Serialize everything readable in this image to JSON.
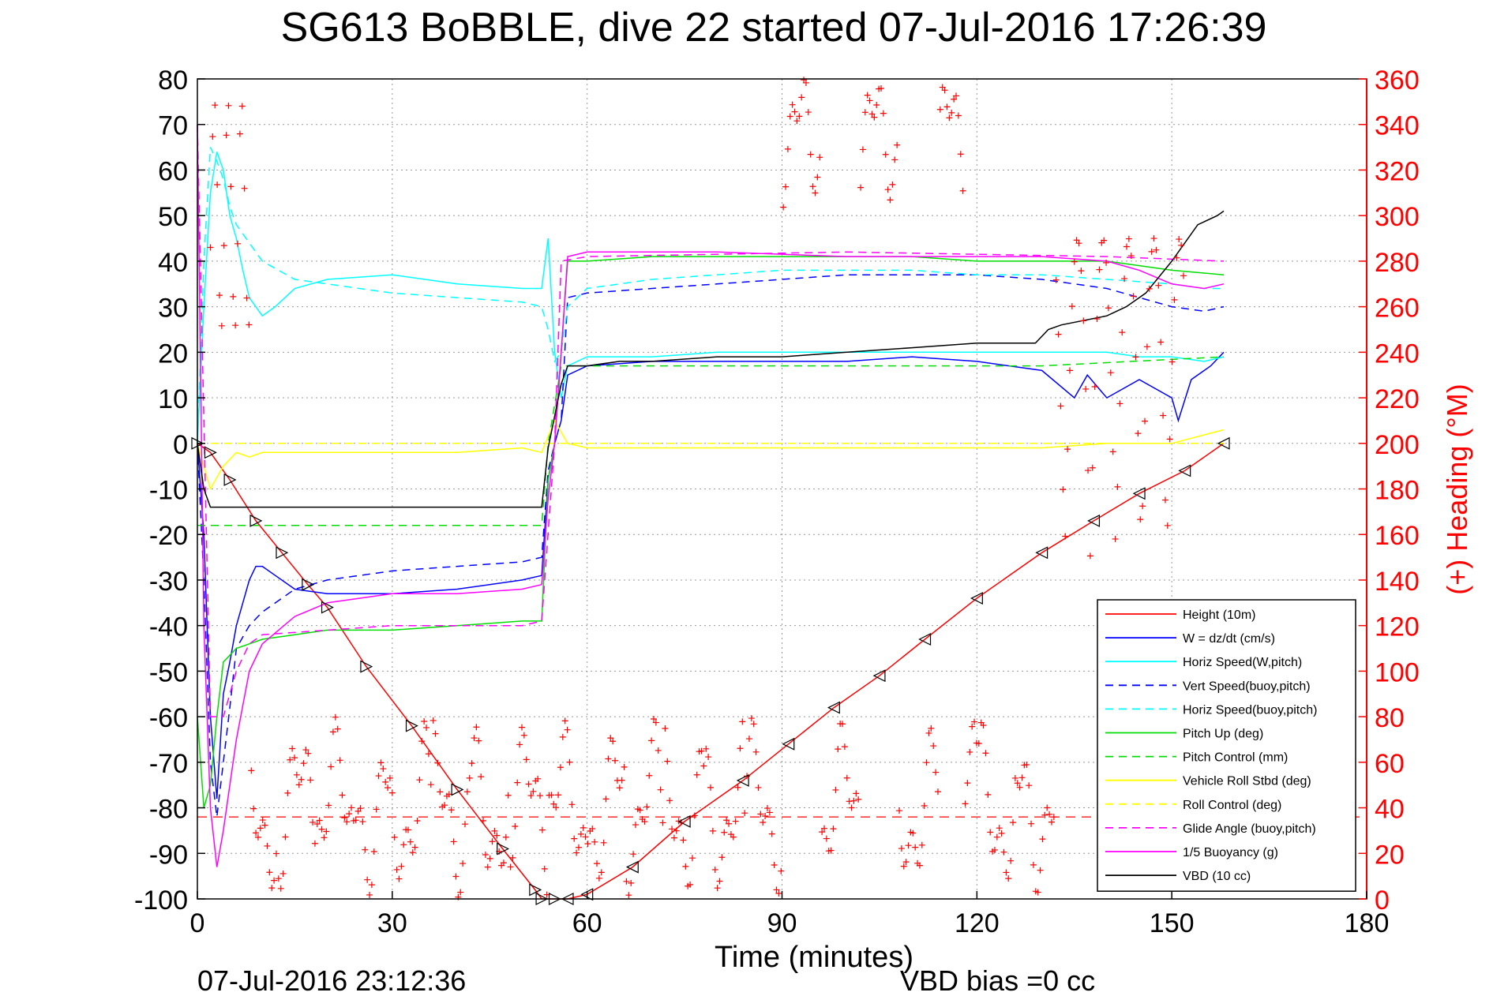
{
  "chart_data": {
    "type": "line",
    "title": "SG613 BoBBLE, dive 22 started 07-Jul-2016 17:26:39",
    "xlabel": "Time (minutes)",
    "ylabel_right": "(+) Heading (°M)",
    "footer_left": "07-Jul-2016 23:12:36",
    "footer_right": "VBD bias =0 cc",
    "xlim": [
      0,
      180
    ],
    "ylim": [
      -100,
      80
    ],
    "y2lim": [
      0,
      360
    ],
    "xticks": [
      "0",
      "30",
      "60",
      "90",
      "120",
      "150",
      "180"
    ],
    "yticks": [
      "80",
      "70",
      "60",
      "50",
      "40",
      "30",
      "20",
      "10",
      "0",
      "-10",
      "-20",
      "-30",
      "-40",
      "-50",
      "-60",
      "-70",
      "-80",
      "-90",
      "-100"
    ],
    "y2ticks": [
      "360",
      "340",
      "320",
      "300",
      "280",
      "260",
      "240",
      "220",
      "200",
      "180",
      "160",
      "140",
      "120",
      "100",
      "80",
      "60",
      "40",
      "20",
      "0"
    ],
    "grid": true,
    "legend_position": "bottom-right",
    "series": [
      {
        "name": "Height (10m)",
        "color": "#ff0000",
        "style": "solid",
        "x": [
          0,
          2,
          5,
          9,
          13,
          17,
          20,
          26,
          33,
          40,
          47,
          52,
          53,
          55,
          57,
          60,
          67,
          75,
          84,
          91,
          98,
          105,
          112,
          120,
          130,
          138,
          145,
          152,
          158
        ],
        "y": [
          0,
          -2,
          -8,
          -17,
          -24,
          -31,
          -36,
          -49,
          -62,
          -76,
          -89,
          -98,
          -100,
          -100,
          -100,
          -99,
          -93,
          -83,
          -74,
          -66,
          -58,
          -51,
          -43,
          -34,
          -24,
          -17,
          -11,
          -6,
          0
        ]
      },
      {
        "name": "W = dz/dt (cm/s)",
        "color": "#0000ff",
        "style": "solid",
        "x": [
          0,
          1,
          2,
          3,
          4,
          5,
          6,
          7,
          8,
          9,
          10,
          12,
          15,
          20,
          30,
          40,
          50,
          53,
          54,
          55,
          56,
          57,
          60,
          70,
          80,
          90,
          100,
          110,
          120,
          130,
          135,
          137,
          140,
          145,
          150,
          151,
          153,
          156,
          158
        ],
        "y": [
          0,
          -20,
          -60,
          -78,
          -55,
          -48,
          -40,
          -35,
          -30,
          -27,
          -27,
          -29,
          -32,
          -33,
          -33,
          -32,
          -30,
          -29,
          -8,
          0,
          5,
          15,
          17,
          18,
          18,
          18,
          18,
          19,
          18,
          16,
          10,
          15,
          10,
          14,
          10,
          5,
          14,
          17,
          20
        ]
      },
      {
        "name": "Horiz Speed(W,pitch)",
        "color": "#00ffff",
        "style": "solid",
        "x": [
          0,
          1,
          2,
          3,
          4,
          5,
          6,
          7,
          8,
          10,
          12,
          15,
          20,
          30,
          40,
          50,
          53,
          54,
          55,
          56,
          57,
          60,
          70,
          80,
          90,
          100,
          110,
          120,
          130,
          140,
          145,
          150,
          155,
          158
        ],
        "y": [
          0,
          30,
          55,
          64,
          60,
          50,
          45,
          38,
          32,
          28,
          30,
          34,
          36,
          37,
          35,
          34,
          34,
          45,
          20,
          10,
          17,
          19,
          19,
          20,
          20,
          20,
          20,
          20,
          20,
          20,
          19,
          19,
          18,
          19
        ]
      },
      {
        "name": "Vert Speed(buoy,pitch)",
        "color": "#0000ff",
        "style": "dashed",
        "x": [
          0,
          1,
          2,
          3,
          4,
          5,
          6,
          8,
          10,
          15,
          20,
          30,
          40,
          50,
          53,
          54,
          55,
          56,
          57,
          60,
          70,
          80,
          90,
          100,
          110,
          120,
          130,
          140,
          150,
          155,
          158
        ],
        "y": [
          0,
          -30,
          -70,
          -82,
          -70,
          -58,
          -45,
          -40,
          -37,
          -32,
          -30,
          -28,
          -27,
          -26,
          -25,
          -6,
          0,
          5,
          32,
          33,
          34,
          35,
          36,
          37,
          37,
          37,
          36,
          34,
          30,
          29,
          30
        ]
      },
      {
        "name": "Horiz Speed(buoy,pitch)",
        "color": "#00ffff",
        "style": "dashed",
        "x": [
          0,
          1,
          2,
          3,
          4,
          5,
          6,
          8,
          10,
          15,
          20,
          30,
          40,
          50,
          53,
          54,
          55,
          56,
          57,
          60,
          70,
          80,
          90,
          100,
          110,
          120,
          130,
          140,
          150,
          155,
          158
        ],
        "y": [
          0,
          40,
          65,
          62,
          58,
          52,
          48,
          44,
          40,
          36,
          35,
          33,
          32,
          31,
          30,
          25,
          18,
          20,
          30,
          34,
          36,
          37,
          38,
          38,
          38,
          37,
          37,
          36,
          35,
          34,
          34
        ]
      },
      {
        "name": "Pitch Up (deg)",
        "color": "#00dd00",
        "style": "solid",
        "x": [
          0,
          1,
          2,
          3,
          4,
          6,
          8,
          10,
          15,
          20,
          30,
          40,
          50,
          53,
          54,
          55,
          56,
          57,
          60,
          70,
          80,
          90,
          100,
          110,
          120,
          130,
          140,
          150,
          158
        ],
        "y": [
          -60,
          -80,
          -75,
          -60,
          -48,
          -45,
          -44,
          -43,
          -42,
          -41,
          -41,
          -40,
          -39,
          -39,
          -8,
          0,
          20,
          40,
          40,
          41,
          41,
          41,
          41,
          41,
          40,
          40,
          40,
          38,
          37
        ]
      },
      {
        "name": "Pitch Control (mm)",
        "color": "#00dd00",
        "style": "dashed",
        "x": [
          0,
          2,
          53,
          54,
          56,
          130,
          158
        ],
        "y": [
          -18,
          -18,
          -18,
          0,
          17,
          17,
          19
        ]
      },
      {
        "name": "Vehicle Roll Stbd (deg)",
        "color": "#ffff00",
        "style": "solid",
        "x": [
          0,
          2,
          4,
          6,
          8,
          10,
          20,
          30,
          40,
          50,
          53,
          55,
          57,
          60,
          70,
          80,
          90,
          100,
          110,
          120,
          130,
          140,
          150,
          158
        ],
        "y": [
          0,
          -10,
          -5,
          -2,
          -3,
          -2,
          -2,
          -2,
          -2,
          -1,
          -2,
          5,
          0,
          -1,
          -1,
          -1,
          -1,
          -1,
          -1,
          -1,
          -1,
          0,
          0,
          3
        ]
      },
      {
        "name": "Roll Control (deg)",
        "color": "#ffff00",
        "style": "dashed",
        "x": [
          0,
          2,
          53,
          60,
          158
        ],
        "y": [
          0,
          0,
          0,
          0,
          0
        ]
      },
      {
        "name": "Glide Angle (buoy,pitch)",
        "color": "#ff00ff",
        "style": "dashed",
        "x": [
          0,
          2,
          4,
          6,
          8,
          10,
          20,
          30,
          40,
          50,
          53,
          55,
          56,
          60,
          100,
          140,
          158
        ],
        "y": [
          70,
          -60,
          -60,
          -50,
          -44,
          -42,
          -41,
          -40,
          -40,
          -40,
          -39,
          0,
          40,
          41,
          42,
          41,
          40
        ]
      },
      {
        "name": "1/5 Buoyancy (g)",
        "color": "#ff00ff",
        "style": "solid",
        "x": [
          0,
          1,
          2,
          3,
          4,
          5,
          6,
          8,
          10,
          15,
          20,
          25,
          30,
          40,
          50,
          53,
          54,
          55,
          56,
          57,
          60,
          80,
          100,
          120,
          130,
          140,
          145,
          150,
          155,
          158
        ],
        "y": [
          70,
          -40,
          -80,
          -93,
          -85,
          -75,
          -65,
          -50,
          -44,
          -38,
          -35,
          -34,
          -33,
          -33,
          -32,
          -31,
          -12,
          0,
          20,
          41,
          42,
          42,
          41,
          41,
          41,
          40,
          38,
          35,
          34,
          35
        ]
      },
      {
        "name": "VBD (10 cc)",
        "color": "#000000",
        "style": "solid",
        "x": [
          0,
          1,
          2,
          53,
          54,
          56,
          57,
          60,
          65,
          70,
          80,
          90,
          100,
          110,
          120,
          129,
          131,
          133,
          140,
          143,
          146,
          150,
          154,
          157,
          158
        ],
        "y": [
          0,
          -10,
          -14,
          -14,
          -1,
          13,
          17,
          17,
          18,
          18,
          19,
          19,
          20,
          21,
          22,
          22,
          25,
          26,
          28,
          30,
          33,
          40,
          48,
          50,
          51
        ]
      }
    ],
    "heading_series": {
      "name": "Heading (+)",
      "color": "#ff0000",
      "axis": "right",
      "marker": "+"
    },
    "reference_line": {
      "y2": 36,
      "color": "#ff0000",
      "style": "dashed"
    }
  }
}
